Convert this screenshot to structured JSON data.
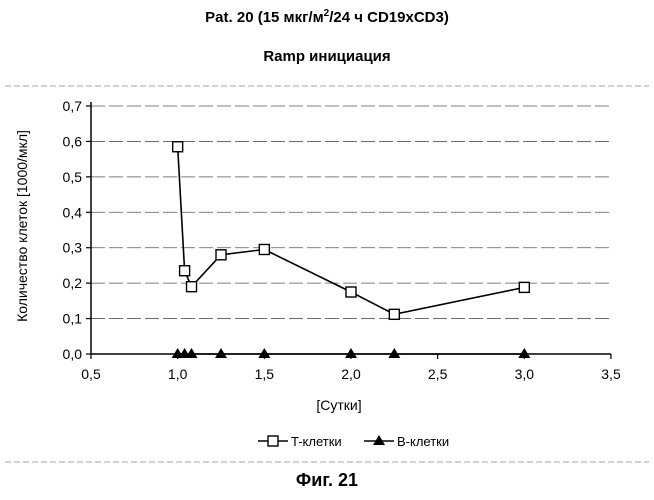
{
  "title_prefix": "Pat. 20 (15 мкг/м",
  "title_sup": "2",
  "title_suffix": "/24 ч CD19xCD3)",
  "subtitle": "Ramp инициация",
  "figure_caption": "Фиг. 21",
  "chart_data": {
    "type": "line",
    "xlabel": "[Сутки]",
    "ylabel": "Количество клеток [1000/мкл]",
    "xlim": [
      0.5,
      3.5
    ],
    "ylim": [
      0.0,
      0.7
    ],
    "xticks": [
      "0,5",
      "1,0",
      "1,5",
      "2,0",
      "2,5",
      "3,0",
      "3,5"
    ],
    "yticks": [
      "0,0",
      "0,1",
      "0,2",
      "0,3",
      "0,4",
      "0,5",
      "0,6",
      "0,7"
    ],
    "grid": "horizontal-dashed",
    "legend_position": "bottom",
    "series": [
      {
        "name": "T-клетки",
        "marker": "open-square",
        "color": "#000000",
        "x": [
          1.0,
          1.04,
          1.08,
          1.25,
          1.5,
          2.0,
          2.25,
          3.0
        ],
        "y": [
          0.585,
          0.235,
          0.19,
          0.28,
          0.295,
          0.175,
          0.112,
          0.188
        ]
      },
      {
        "name": "B-клетки",
        "marker": "filled-triangle",
        "color": "#000000",
        "x": [
          1.0,
          1.04,
          1.08,
          1.25,
          1.5,
          2.0,
          2.25,
          3.0
        ],
        "y": [
          0.0,
          0.0,
          0.0,
          0.0,
          0.0,
          0.0,
          0.0,
          0.0
        ]
      }
    ]
  }
}
